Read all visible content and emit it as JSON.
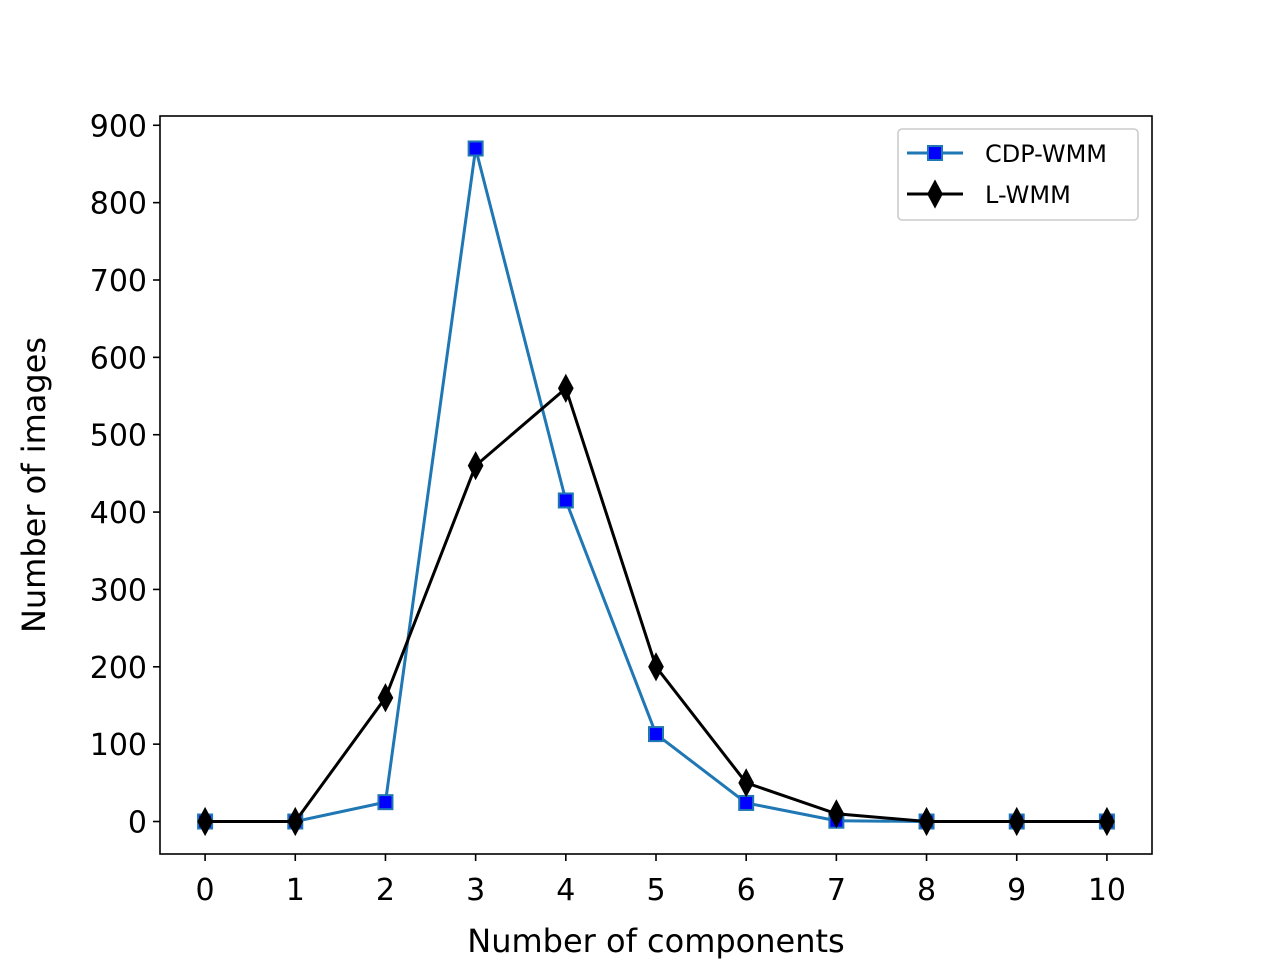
{
  "chart_data": {
    "type": "line",
    "xlabel": "Number of components",
    "ylabel": "Number of images",
    "x": [
      0,
      1,
      2,
      3,
      4,
      5,
      6,
      7,
      8,
      9,
      10
    ],
    "xlim": [
      -0.5,
      10.5
    ],
    "ylim": [
      -42,
      912
    ],
    "xticks": [
      "0",
      "1",
      "2",
      "3",
      "4",
      "5",
      "6",
      "7",
      "8",
      "9",
      "10"
    ],
    "yticks": [
      "0",
      "100",
      "200",
      "300",
      "400",
      "500",
      "600",
      "700",
      "800",
      "900"
    ],
    "grid": false,
    "legend_position": "top-right",
    "series": [
      {
        "name": "CDP-WMM",
        "values": [
          0,
          0,
          25,
          870,
          415,
          113,
          24,
          1,
          0,
          0,
          0
        ],
        "color": "#1f77b4",
        "marker": "square",
        "marker_fill": "#0000ff"
      },
      {
        "name": "L-WMM",
        "values": [
          0,
          0,
          160,
          460,
          560,
          200,
          50,
          10,
          0,
          0,
          0
        ],
        "color": "#000000",
        "marker": "thin-diamond",
        "marker_fill": "#000000"
      }
    ]
  }
}
